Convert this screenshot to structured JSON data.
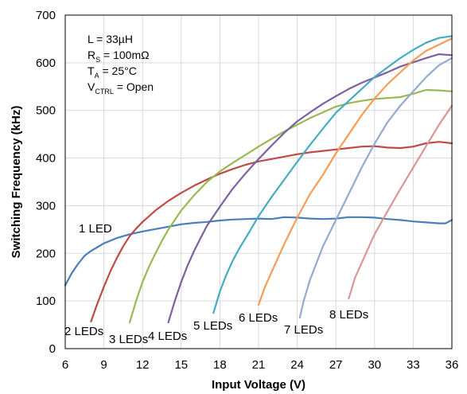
{
  "chart_data": {
    "type": "line",
    "xlabel": "Input Voltage (V)",
    "ylabel": "Switching Frequency (kHz)",
    "xlim": [
      6,
      36
    ],
    "ylim": [
      0,
      700
    ],
    "xticks": [
      "6",
      "9",
      "12",
      "15",
      "18",
      "21",
      "24",
      "27",
      "30",
      "33",
      "36"
    ],
    "yticks": [
      "0",
      "100",
      "200",
      "300",
      "400",
      "500",
      "600",
      "700"
    ],
    "grid": true,
    "conditions": [
      {
        "main": "L = 33µH",
        "sub": "",
        "tail": ""
      },
      {
        "main": "R",
        "sub": "S",
        "tail": " = 100mΩ"
      },
      {
        "main": "T",
        "sub": "A",
        "tail": " = 25°C"
      },
      {
        "main": "V",
        "sub": "CTRL",
        "tail": " = Open"
      }
    ],
    "series": [
      {
        "name": "1 LED",
        "color": "#4a7ebb",
        "x": [
          6,
          6.5,
          7,
          7.5,
          8,
          8.5,
          9,
          10,
          11,
          12,
          13,
          14,
          15,
          16,
          17,
          18,
          19,
          20,
          21,
          22,
          23,
          24,
          25,
          26,
          27,
          28,
          29,
          30,
          31,
          32,
          33,
          34,
          35,
          35.5,
          36
        ],
        "y": [
          133,
          158,
          178,
          195,
          205,
          213,
          221,
          232,
          240,
          246,
          251,
          256,
          261,
          264,
          266,
          269,
          271,
          272,
          273,
          272,
          276,
          275,
          273,
          272,
          273,
          276,
          276,
          275,
          272,
          270,
          267,
          265,
          263,
          263,
          270
        ]
      },
      {
        "name": "2 LEDs",
        "color": "#be4b48",
        "x": [
          8,
          8.5,
          9,
          9.5,
          10,
          10.5,
          11,
          11.5,
          12,
          13,
          14,
          15,
          16,
          17,
          18,
          19,
          20,
          21,
          22,
          23,
          24,
          25,
          26,
          27,
          28,
          29,
          30,
          31,
          32,
          33,
          34,
          35,
          36
        ],
        "y": [
          57,
          95,
          130,
          162,
          190,
          215,
          236,
          252,
          266,
          290,
          310,
          327,
          342,
          355,
          367,
          377,
          386,
          393,
          398,
          403,
          408,
          412,
          415,
          418,
          421,
          424,
          425,
          422,
          421,
          424,
          431,
          434,
          431
        ]
      },
      {
        "name": "3 LEDs",
        "color": "#98b954",
        "x": [
          11,
          11.5,
          12,
          12.5,
          13,
          13.5,
          14,
          15,
          16,
          17,
          18,
          19,
          20,
          21,
          22,
          23,
          24,
          25,
          26,
          27,
          28,
          29,
          30,
          31,
          32,
          33,
          34,
          35,
          36
        ],
        "y": [
          55,
          100,
          140,
          172,
          200,
          226,
          250,
          290,
          322,
          350,
          372,
          390,
          407,
          424,
          440,
          456,
          470,
          484,
          496,
          508,
          515,
          520,
          524,
          526,
          528,
          535,
          543,
          542,
          540
        ]
      },
      {
        "name": "4 LEDs",
        "color": "#7d60a0",
        "x": [
          14,
          14.5,
          15,
          15.5,
          16,
          16.5,
          17,
          18,
          19,
          20,
          21,
          22,
          23,
          24,
          25,
          26,
          27,
          28,
          29,
          30,
          31,
          32,
          33,
          34,
          35,
          36
        ],
        "y": [
          55,
          100,
          140,
          175,
          205,
          232,
          258,
          298,
          336,
          368,
          398,
          426,
          453,
          477,
          496,
          514,
          530,
          545,
          558,
          569,
          580,
          592,
          601,
          610,
          618,
          616
        ]
      },
      {
        "name": "5 LEDs",
        "color": "#46aac5",
        "x": [
          17.5,
          18,
          18.5,
          19,
          19.5,
          20,
          21,
          22,
          23,
          24,
          25,
          26,
          27,
          28,
          29,
          30,
          31,
          32,
          33,
          34,
          35,
          36
        ],
        "y": [
          75,
          120,
          155,
          185,
          210,
          232,
          278,
          318,
          355,
          392,
          428,
          462,
          495,
          520,
          545,
          570,
          590,
          610,
          627,
          642,
          652,
          656
        ]
      },
      {
        "name": "6 LEDs",
        "color": "#f59d56",
        "x": [
          21,
          21.5,
          22,
          22.5,
          23,
          24,
          25,
          26,
          27,
          28,
          29,
          30,
          31,
          32,
          33,
          34,
          35,
          36
        ],
        "y": [
          92,
          130,
          160,
          190,
          220,
          275,
          325,
          365,
          410,
          450,
          490,
          525,
          555,
          580,
          605,
          625,
          638,
          651
        ]
      },
      {
        "name": "7 LEDs",
        "color": "#93a9cf",
        "x": [
          24.2,
          24.5,
          25,
          25.5,
          26,
          27,
          28,
          29,
          30,
          31,
          32,
          33,
          34,
          35,
          36
        ],
        "y": [
          65,
          100,
          145,
          180,
          215,
          270,
          325,
          380,
          430,
          475,
          510,
          540,
          570,
          595,
          610
        ]
      },
      {
        "name": "8 LEDs",
        "color": "#d99694",
        "x": [
          28,
          28.5,
          29,
          29.5,
          30,
          31,
          32,
          33,
          34,
          35,
          36
        ],
        "y": [
          105,
          150,
          180,
          210,
          240,
          288,
          335,
          380,
          425,
          470,
          510
        ]
      }
    ],
    "annotations": [
      "1 LED",
      "2 LEDs",
      "3 LEDs",
      "4 LEDs",
      "5 LEDs",
      "6 LEDs",
      "7 LEDs",
      "8 LEDs"
    ]
  }
}
